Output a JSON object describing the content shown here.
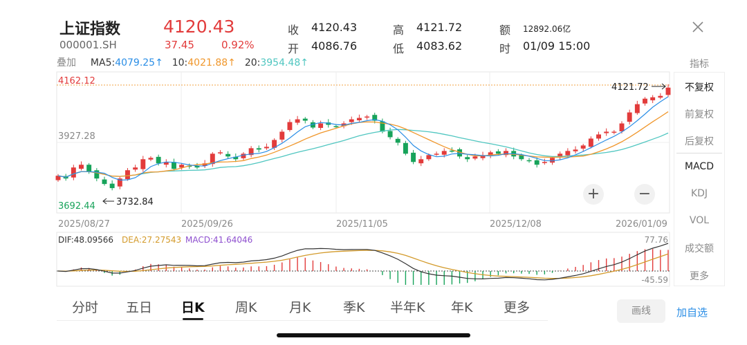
{
  "header": {
    "name": "上证指数",
    "code": "000001.SH",
    "price": "4120.43",
    "change": "37.45",
    "change_pct": "0.92%",
    "stats": [
      {
        "label": "收",
        "value": "4120.43"
      },
      {
        "label": "开",
        "value": "4086.76"
      },
      {
        "label": "高",
        "value": "4121.72"
      },
      {
        "label": "低",
        "value": "4083.62"
      },
      {
        "label": "额",
        "value": "12892.06亿"
      },
      {
        "label": "时",
        "value": "01/09 15:00"
      }
    ]
  },
  "overlay": {
    "label": "叠加",
    "ma5_label": "MA5:",
    "ma5_value": "4079.25",
    "ma10_label": "10:",
    "ma10_value": "4021.88",
    "ma20_label": "20:",
    "ma20_value": "3954.48",
    "arrow": "↑"
  },
  "price_axis": {
    "top": "4162.12",
    "mid": "3927.28",
    "bottom": "3692.44"
  },
  "annotations": {
    "high": "4121.72",
    "low": "3732.84"
  },
  "date_axis": [
    "2025/08/27",
    "2025/09/26",
    "2025/11/05",
    "2025/12/08",
    "2026/01/09"
  ],
  "macd_panel": {
    "dif_label": "DIF:48.09566",
    "dea_label": "DEA:27.27543",
    "macd_label": "MACD:41.64046",
    "max": "77.76",
    "min": "-45.59"
  },
  "side_menu": [
    "指标",
    "不复权",
    "前复权",
    "后复权",
    "MACD",
    "KDJ",
    "VOL",
    "成交额",
    "更多"
  ],
  "tabs": [
    "分时",
    "五日",
    "日K",
    "周K",
    "月K",
    "季K",
    "半年K",
    "年K",
    "更多"
  ],
  "active_tab": "日K",
  "buttons": {
    "draw": "画线",
    "add_watch": "加自选",
    "zoom_in": "+",
    "zoom_out": "−"
  },
  "colors": {
    "up": "#e23b3b",
    "down": "#17a35a",
    "ma5": "#3a3a3a",
    "ma10": "#f0962a",
    "ma20": "#4fc6c0",
    "dif": "#333333",
    "dea": "#d39a2a",
    "link": "#2a8ee6"
  },
  "chart_data": {
    "type": "candlestick",
    "ylim": [
      3692.44,
      4162.12
    ],
    "x_range": [
      "2025/08/27",
      "2026/01/09"
    ],
    "approx_closes": [
      3800,
      3790,
      3830,
      3840,
      3815,
      3790,
      3770,
      3755,
      3790,
      3820,
      3830,
      3860,
      3865,
      3845,
      3850,
      3825,
      3840,
      3835,
      3830,
      3845,
      3880,
      3885,
      3870,
      3860,
      3880,
      3900,
      3895,
      3905,
      3930,
      3960,
      3995,
      4005,
      4000,
      3975,
      3990,
      3985,
      3980,
      3990,
      4005,
      4010,
      4015,
      4000,
      3960,
      3940,
      3920,
      3880,
      3850,
      3860,
      3875,
      3880,
      3890,
      3890,
      3870,
      3860,
      3870,
      3875,
      3885,
      3880,
      3890,
      3870,
      3860,
      3855,
      3840,
      3850,
      3865,
      3880,
      3890,
      3895,
      3910,
      3935,
      3950,
      3960,
      3960,
      3990,
      4030,
      4060,
      4080,
      4085,
      4090,
      4120
    ]
  }
}
